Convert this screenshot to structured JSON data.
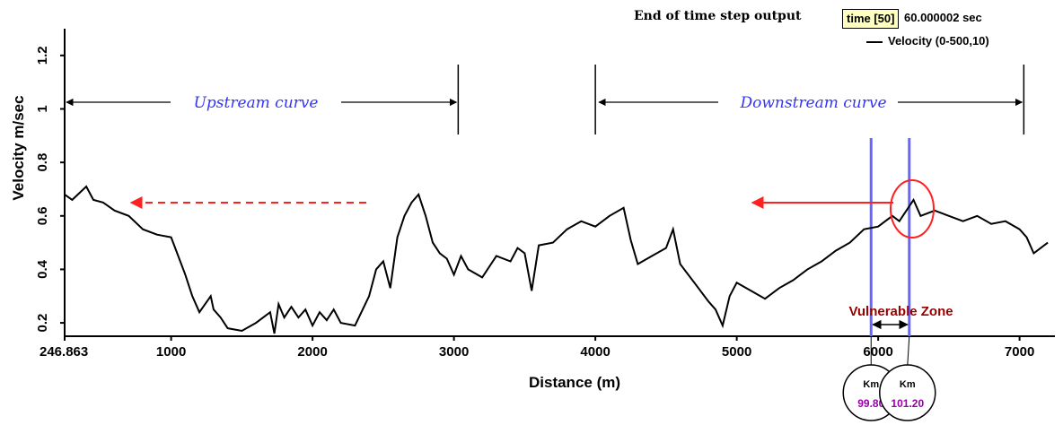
{
  "header": {
    "title": "End of time step output",
    "time_label": "time [50]",
    "time_value": "60.000002 sec"
  },
  "chart_data": {
    "type": "line",
    "xlabel": "Distance (m)",
    "ylabel": "Velocity m/sec",
    "xlim": [
      246.863,
      7250
    ],
    "ylim": [
      0.15,
      1.3
    ],
    "x_ticks": [
      "246.863",
      "1000",
      "2000",
      "3000",
      "4000",
      "5000",
      "6000",
      "7000"
    ],
    "y_ticks": [
      "0.2",
      "0.4",
      "0.6",
      "0.8",
      "1",
      "1.2"
    ],
    "legend_position": "top-right",
    "series": [
      {
        "name": "Velocity (0-500,10)",
        "color": "#000000",
        "x": [
          246.863,
          300,
          400,
          450,
          520,
          600,
          700,
          800,
          900,
          1000,
          1050,
          1100,
          1150,
          1200,
          1280,
          1300,
          1350,
          1400,
          1500,
          1600,
          1700,
          1730,
          1760,
          1800,
          1850,
          1900,
          1950,
          2000,
          2050,
          2100,
          2150,
          2200,
          2300,
          2400,
          2450,
          2500,
          2550,
          2600,
          2650,
          2700,
          2750,
          2800,
          2850,
          2900,
          2950,
          3000,
          3050,
          3100,
          3200,
          3300,
          3400,
          3450,
          3500,
          3550,
          3600,
          3700,
          3800,
          3900,
          4000,
          4100,
          4200,
          4250,
          4300,
          4400,
          4500,
          4550,
          4600,
          4700,
          4800,
          4850,
          4900,
          4950,
          5000,
          5100,
          5200,
          5300,
          5400,
          5500,
          5600,
          5700,
          5800,
          5900,
          6000,
          6100,
          6150,
          6200,
          6250,
          6300,
          6400,
          6500,
          6600,
          6700,
          6800,
          6900,
          7000,
          7050,
          7100,
          7150,
          7200
        ],
        "values": [
          0.68,
          0.66,
          0.71,
          0.66,
          0.65,
          0.62,
          0.6,
          0.55,
          0.53,
          0.52,
          0.45,
          0.38,
          0.3,
          0.24,
          0.3,
          0.25,
          0.22,
          0.18,
          0.17,
          0.2,
          0.24,
          0.16,
          0.27,
          0.22,
          0.26,
          0.22,
          0.25,
          0.19,
          0.24,
          0.21,
          0.25,
          0.2,
          0.19,
          0.3,
          0.4,
          0.43,
          0.33,
          0.52,
          0.6,
          0.65,
          0.68,
          0.6,
          0.5,
          0.46,
          0.44,
          0.38,
          0.45,
          0.4,
          0.37,
          0.45,
          0.43,
          0.48,
          0.46,
          0.32,
          0.49,
          0.5,
          0.55,
          0.58,
          0.56,
          0.6,
          0.63,
          0.51,
          0.42,
          0.45,
          0.48,
          0.55,
          0.42,
          0.35,
          0.28,
          0.25,
          0.19,
          0.3,
          0.35,
          0.32,
          0.29,
          0.33,
          0.36,
          0.4,
          0.43,
          0.47,
          0.5,
          0.55,
          0.56,
          0.6,
          0.58,
          0.62,
          0.66,
          0.6,
          0.62,
          0.6,
          0.58,
          0.6,
          0.57,
          0.58,
          0.55,
          0.52,
          0.46,
          0.48,
          0.5
        ]
      }
    ],
    "annotations": {
      "upstream_label": "Upstream curve",
      "downstream_label": "Downstream curve",
      "zone_label": "Vulnerable Zone",
      "markers": [
        {
          "unit": "Km",
          "value": "99.80",
          "x": 5950
        },
        {
          "unit": "Km",
          "value": "101.20",
          "x": 6220
        }
      ]
    },
    "colors": {
      "curve_text": "#3333ff",
      "marker_line": "#6666ff",
      "arrow": "#ff2020",
      "zone_text": "#990000",
      "marker_value": "#9900aa"
    }
  }
}
